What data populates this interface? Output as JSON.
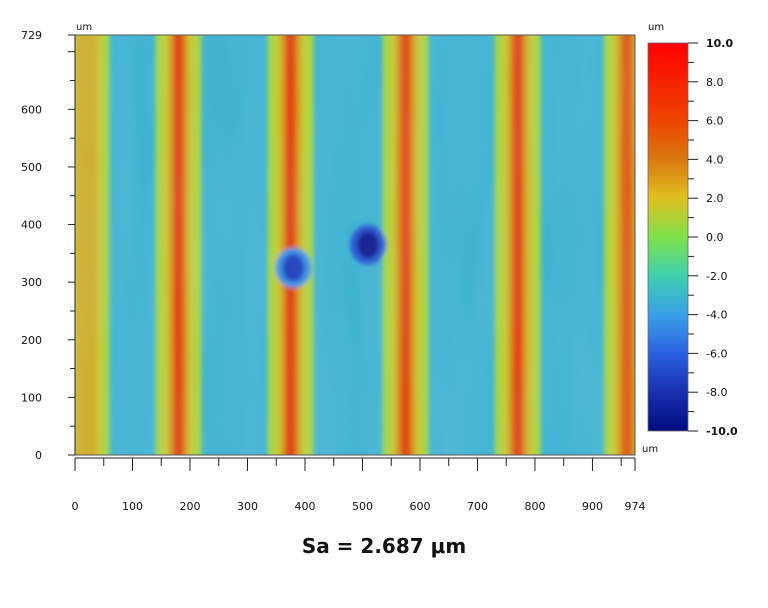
{
  "chart_data": {
    "type": "heatmap",
    "x_unit": "um",
    "y_unit": "um",
    "colorbar_unit_top": "um",
    "colorbar_unit_bottom": "um",
    "xlim": [
      0,
      974
    ],
    "ylim": [
      0,
      729
    ],
    "x_ticks": [
      0,
      100,
      200,
      300,
      400,
      500,
      600,
      700,
      800,
      900,
      974
    ],
    "y_ticks": [
      0,
      100,
      200,
      300,
      400,
      500,
      600,
      729
    ],
    "colorbar": {
      "range": [
        -10.0,
        10.0
      ],
      "ticks": [
        "10.0",
        "8.0",
        "6.0",
        "4.0",
        "2.0",
        "0.0",
        "-2.0",
        "-4.0",
        "-6.0",
        "-8.0",
        "-10.0"
      ]
    },
    "stripes": [
      {
        "x": 20,
        "value": 3.0
      },
      {
        "x": 180,
        "value": 6.5
      },
      {
        "x": 375,
        "value": 6.5
      },
      {
        "x": 575,
        "value": 6.2
      },
      {
        "x": 770,
        "value": 6.6
      },
      {
        "x": 960,
        "value": 5.5
      }
    ],
    "pits": [
      {
        "x": 510,
        "y": 365,
        "value": -9.5
      },
      {
        "x": 380,
        "y": 325,
        "value": -7.5
      }
    ],
    "baseline_value": -3.2
  },
  "summary": {
    "sa_text": "Sa = 2.687 μm"
  }
}
